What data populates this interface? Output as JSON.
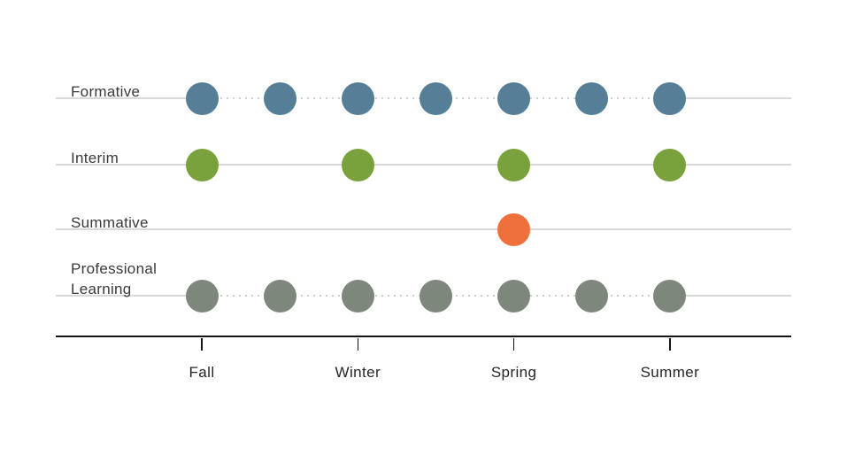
{
  "chart_data": {
    "type": "scatter",
    "x_axis": {
      "categories": [
        "Fall",
        "Winter",
        "Spring",
        "Summer"
      ]
    },
    "rows": [
      {
        "label": "Formative",
        "label_lines": [
          "Formative"
        ],
        "color": "#567e97",
        "connector": "dotted",
        "positions": [
          0,
          0.5,
          1,
          1.5,
          2,
          2.5,
          3
        ]
      },
      {
        "label": "Interim",
        "label_lines": [
          "Interim"
        ],
        "color": "#7aa23c",
        "connector": "solid",
        "positions": [
          0,
          1,
          2,
          3
        ]
      },
      {
        "label": "Summative",
        "label_lines": [
          "Summative"
        ],
        "color": "#f0703c",
        "connector": "solid",
        "positions": [
          2
        ]
      },
      {
        "label": "Professional Learning",
        "label_lines": [
          "Professional",
          "Learning"
        ],
        "color": "#7e877c",
        "connector": "dotted",
        "positions": [
          0,
          0.5,
          1,
          1.5,
          2,
          2.5,
          3
        ]
      }
    ],
    "colors": {
      "row_line": "#d9d9d9",
      "dotted_line": "#cfcfcf",
      "axis_line": "#141414",
      "label_text": "#3a3a3a"
    },
    "legend": "none",
    "grid": "row-baselines"
  }
}
